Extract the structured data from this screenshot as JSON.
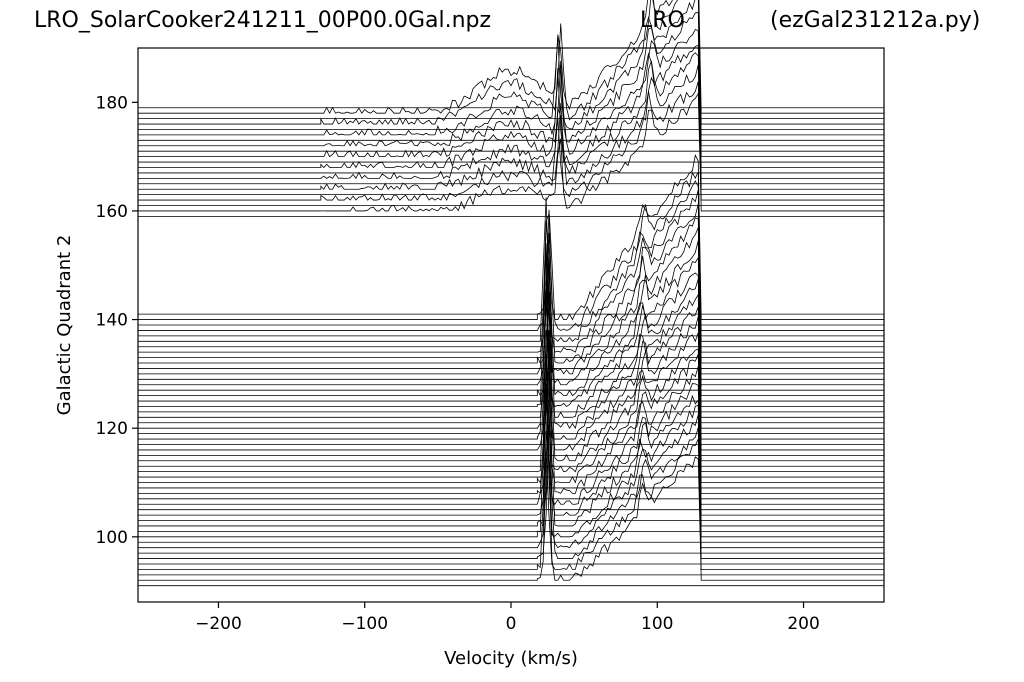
{
  "header": {
    "left": "LRO_SolarCooker241211_00P00.0Gal.npz",
    "center": "LRO",
    "right": "(ezGal231212a.py)"
  },
  "chart_data": {
    "type": "line",
    "title": "",
    "xlabel": "Velocity (km/s)",
    "ylabel": "Galactic Quadrant 2",
    "xlim": [
      -255,
      255
    ],
    "ylim": [
      88,
      190
    ],
    "xticks": [
      -200,
      -100,
      0,
      100,
      200
    ],
    "xtick_labels": [
      "−200",
      "−100",
      "0",
      "100",
      "200"
    ],
    "yticks": [
      100,
      120,
      140,
      160,
      180
    ],
    "yticks_labels": [
      "100",
      "120",
      "140",
      "160",
      "180"
    ],
    "line_color": "#000000",
    "grid": false,
    "description_baselines": {
      "upper_group": {
        "from": 159,
        "to": 179,
        "step": 1
      },
      "lower_group": {
        "from": 91,
        "to": 141,
        "step": 1
      }
    },
    "upper_group_profile": {
      "velocity_range": [
        -130,
        130
      ],
      "features": [
        {
          "velocity": 0,
          "peak_offset": 8,
          "width": 22
        },
        {
          "velocity": 33,
          "spike_offset": 17,
          "width": 1.5
        },
        {
          "velocity": 95,
          "spike_offset": 8,
          "width": 2
        }
      ],
      "ramp": {
        "start": 40,
        "end": 128,
        "rise": 27
      }
    },
    "lower_group_profile": {
      "velocity_range": [
        18,
        130
      ],
      "features": [
        {
          "velocity": 2,
          "peak_offset": 5,
          "width": 3
        },
        {
          "velocity": 25,
          "spike_offset": 30,
          "width": 1.5
        },
        {
          "velocity": 90,
          "spike_offset": 6,
          "width": 2
        }
      ],
      "ramp": {
        "start": 42,
        "end": 128,
        "rise": 30
      }
    }
  }
}
